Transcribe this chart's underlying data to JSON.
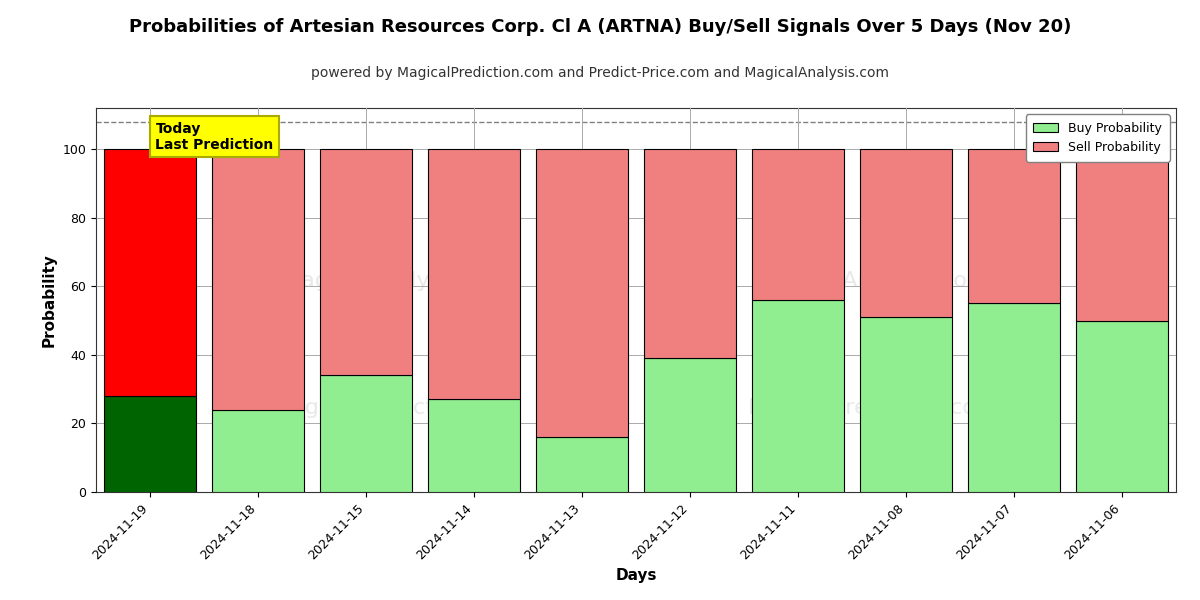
{
  "title": "Probabilities of Artesian Resources Corp. Cl A (ARTNA) Buy/Sell Signals Over 5 Days (Nov 20)",
  "subtitle": "powered by MagicalPrediction.com and Predict-Price.com and MagicalAnalysis.com",
  "xlabel": "Days",
  "ylabel": "Probability",
  "categories": [
    "2024-11-19",
    "2024-11-18",
    "2024-11-15",
    "2024-11-14",
    "2024-11-13",
    "2024-11-12",
    "2024-11-11",
    "2024-11-08",
    "2024-11-07",
    "2024-11-06"
  ],
  "buy_probs": [
    28,
    24,
    34,
    27,
    16,
    39,
    56,
    51,
    55,
    50
  ],
  "sell_probs": [
    72,
    76,
    66,
    73,
    84,
    61,
    44,
    49,
    45,
    50
  ],
  "today_bar_index": 0,
  "today_buy_color": "#006400",
  "today_sell_color": "#ff0000",
  "buy_color": "#90ee90",
  "sell_color": "#f08080",
  "today_label": "Today\nLast Prediction",
  "today_label_bg": "#ffff00",
  "bar_edge_color": "#000000",
  "ylim": [
    0,
    112
  ],
  "yticks": [
    0,
    20,
    40,
    60,
    80,
    100
  ],
  "dashed_line_y": 108,
  "watermark_text1": "MagicalAnalysis.com",
  "watermark_text2": "MagicalPrediction.com",
  "grid_color": "#aaaaaa",
  "fig_width": 12,
  "fig_height": 6,
  "title_fontsize": 13,
  "subtitle_fontsize": 10,
  "label_fontsize": 11,
  "tick_fontsize": 9,
  "bar_width": 0.85
}
